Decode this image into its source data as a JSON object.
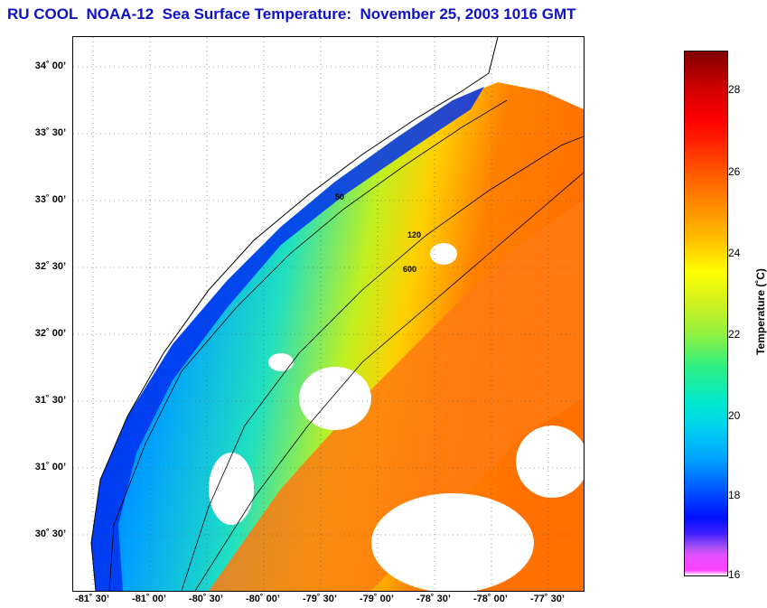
{
  "title": "RU COOL  NOAA-12  Sea Surface Temperature:  November 25, 2003 1016 GMT",
  "map": {
    "lat_labels": [
      "34˚ 00’",
      "33˚ 30’",
      "33˚ 00’",
      "32˚ 30’",
      "32˚ 00’",
      "31˚ 30’",
      "31˚ 00’",
      "30˚ 30’"
    ],
    "lon_labels": [
      "-81˚ 30’",
      "-81˚ 00’",
      "-80˚ 30’",
      "-80˚ 00’",
      "-79˚ 30’",
      "-79˚ 00’",
      "-78˚ 30’",
      "-78˚ 00’",
      "-77˚ 30’"
    ],
    "contour_labels": [
      "50",
      "120",
      "600"
    ]
  },
  "colorbar": {
    "label": "Temperature (˚C)",
    "ticks": [
      "28",
      "26",
      "24",
      "22",
      "20",
      "18",
      "16"
    ]
  }
}
